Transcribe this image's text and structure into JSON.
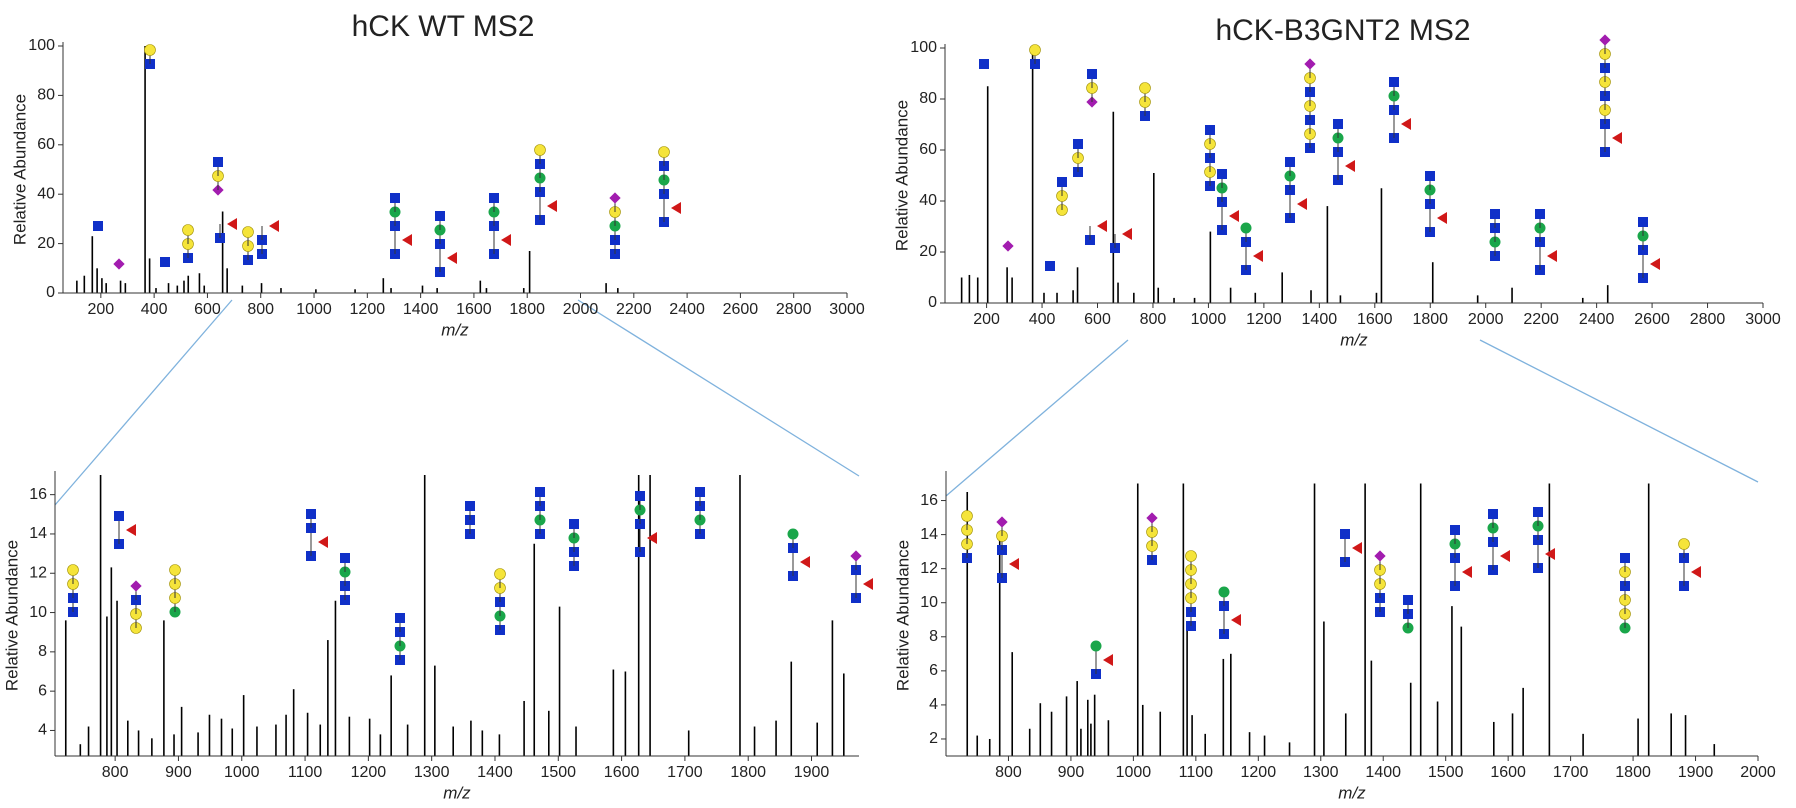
{
  "chart_data": [
    {
      "type": "bar",
      "title": "hCK WT MS2",
      "y_label": "Relative Abundance",
      "x_label": "m/z",
      "color": "#000000",
      "x": [
        110,
        138,
        168,
        186,
        204,
        220,
        274,
        292,
        366,
        383,
        407,
        454,
        487,
        512,
        528,
        570,
        588,
        657,
        674,
        731,
        803,
        876,
        1007,
        1154,
        1260,
        1289,
        1407,
        1462,
        1624,
        1647,
        1787,
        1809,
        2096,
        2140
      ],
      "values": [
        5,
        7,
        23,
        10,
        6,
        4,
        5,
        4,
        100,
        14,
        2,
        4,
        3,
        5,
        7,
        8,
        3,
        33,
        10,
        3,
        4,
        2,
        1.5,
        1.5,
        6,
        2,
        3,
        2,
        5,
        2,
        2,
        17,
        4,
        2
      ],
      "xlim": [
        58,
        3000
      ],
      "ylim": [
        0,
        100
      ],
      "xticks": [
        200,
        400,
        600,
        800,
        1000,
        1200,
        1400,
        1600,
        1800,
        2000,
        2200,
        2400,
        2600,
        2800,
        3000
      ],
      "yticks": [
        0,
        20,
        40,
        60,
        80,
        100
      ]
    },
    {
      "type": "bar",
      "title": "hCK-B3GNT2 MS2",
      "y_label": "Relative Abundance",
      "x_label": "m/z",
      "color": "#000000",
      "x": [
        110,
        138,
        168,
        204,
        274,
        292,
        366,
        407,
        454,
        512,
        528,
        657,
        674,
        731,
        803,
        819,
        876,
        950,
        1007,
        1080,
        1169,
        1266,
        1370,
        1429,
        1476,
        1606,
        1624,
        1809,
        1971,
        2095,
        2350,
        2440
      ],
      "values": [
        10,
        11,
        10,
        85,
        14,
        10,
        100,
        4,
        4,
        5,
        14,
        75,
        8,
        4,
        51,
        6,
        2,
        2,
        28,
        6,
        4,
        12,
        5,
        38,
        3,
        4,
        45,
        16,
        3,
        6,
        2,
        7
      ],
      "xlim": [
        50,
        3000
      ],
      "ylim": [
        0,
        100
      ],
      "xticks": [
        200,
        400,
        600,
        800,
        1000,
        1200,
        1400,
        1600,
        1800,
        2000,
        2200,
        2400,
        2600,
        2800,
        3000
      ],
      "yticks": [
        0,
        20,
        40,
        60,
        80,
        100
      ]
    },
    {
      "type": "bar",
      "y_label": "Relative Abundance",
      "x_label": "m/z",
      "color": "#000000",
      "x": [
        722,
        745,
        758,
        777,
        787,
        794,
        803,
        820,
        837,
        858,
        877,
        893,
        905,
        931,
        949,
        968,
        985,
        1003,
        1024,
        1054,
        1070,
        1082,
        1104,
        1124,
        1136,
        1148,
        1170,
        1202,
        1219,
        1236,
        1262,
        1289,
        1305,
        1334,
        1362,
        1380,
        1407,
        1446,
        1462,
        1485,
        1502,
        1528,
        1587,
        1606,
        1627,
        1645,
        1706,
        1787,
        1810,
        1844,
        1868,
        1909,
        1933,
        1951
      ],
      "values": [
        9.6,
        3.3,
        4.2,
        17,
        9.8,
        12.3,
        10.6,
        4.5,
        4,
        3.6,
        9.6,
        3.8,
        5.2,
        3.9,
        4.8,
        4.6,
        4.1,
        5.8,
        4.2,
        4.3,
        4.8,
        6.1,
        4.9,
        4.3,
        8.6,
        10.6,
        4.7,
        4.6,
        3.8,
        6.8,
        4.3,
        17,
        7.3,
        4.2,
        4.5,
        4,
        3.8,
        5.5,
        13.5,
        5,
        10.3,
        4.2,
        7.1,
        7,
        17,
        17,
        4,
        17,
        4.2,
        4.5,
        7.5,
        4.4,
        9.6,
        6.9
      ],
      "xlim": [
        705,
        1975
      ],
      "ylim": [
        2.7,
        17
      ],
      "xticks": [
        800,
        900,
        1000,
        1100,
        1200,
        1300,
        1400,
        1500,
        1600,
        1700,
        1800,
        1900
      ],
      "yticks": [
        4,
        6,
        8,
        10,
        12,
        14,
        16
      ]
    },
    {
      "type": "bar",
      "y_label": "Relative Abundance",
      "x_label": "m/z",
      "color": "#000000",
      "x": [
        734,
        750,
        770,
        786,
        806,
        834,
        851,
        869,
        893,
        910,
        916,
        927,
        932,
        938,
        960,
        1007,
        1015,
        1043,
        1080,
        1086,
        1094,
        1115,
        1144,
        1156,
        1186,
        1210,
        1250,
        1290,
        1305,
        1340,
        1371,
        1381,
        1444,
        1460,
        1487,
        1510,
        1525,
        1577,
        1607,
        1624,
        1666,
        1720,
        1808,
        1825,
        1861,
        1884,
        1930
      ],
      "values": [
        16.5,
        2.2,
        2,
        14,
        7.1,
        2.6,
        4.1,
        3.6,
        4.5,
        5.4,
        2.6,
        4.3,
        2.9,
        4.6,
        3.1,
        17,
        4,
        3.6,
        17,
        8.4,
        3.4,
        2.3,
        6.7,
        7,
        2.4,
        2.2,
        1.8,
        17,
        8.9,
        3.5,
        17,
        6.6,
        5.3,
        17,
        4.2,
        9.8,
        8.6,
        3,
        3.5,
        5,
        17,
        2.3,
        3.2,
        17,
        3.5,
        3.4,
        1.7
      ],
      "xlim": [
        700,
        2000
      ],
      "ylim": [
        1,
        17.5
      ],
      "xticks": [
        800,
        900,
        1000,
        1100,
        1200,
        1300,
        1400,
        1500,
        1600,
        1700,
        1800,
        1900,
        2000
      ],
      "yticks": [
        2,
        4,
        6,
        8,
        10,
        12,
        14,
        16
      ]
    }
  ]
}
